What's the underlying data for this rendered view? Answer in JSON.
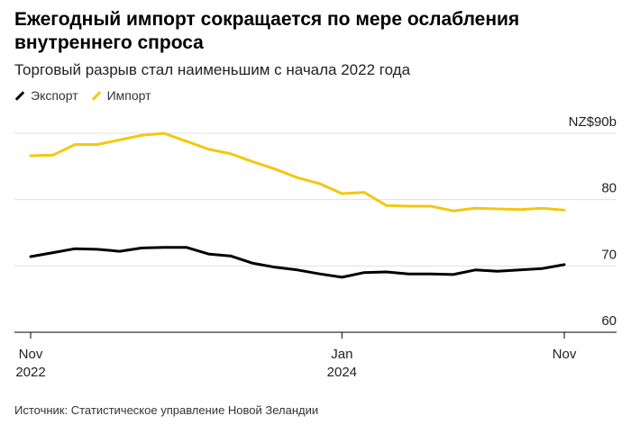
{
  "title": "Ежегодный импорт сокращается по мере ослабления внутреннего спроса",
  "subtitle": "Торговый разрыв стал наименьшим с начала 2022 года",
  "source": "Источник: Статистическое управление Новой Зеландии",
  "colors": {
    "export": "#000000",
    "import": "#f2c811",
    "grid": "#e0e0e0"
  },
  "chart_data": {
    "type": "line",
    "x": [
      "2022-11",
      "2022-12",
      "2023-01",
      "2023-02",
      "2023-03",
      "2023-04",
      "2023-05",
      "2023-06",
      "2023-07",
      "2023-08",
      "2023-09",
      "2023-10",
      "2023-11",
      "2023-12",
      "2024-01",
      "2024-02",
      "2024-03",
      "2024-04",
      "2024-05",
      "2024-06",
      "2024-07",
      "2024-08",
      "2024-09",
      "2024-10",
      "2024-11"
    ],
    "series": [
      {
        "name": "Экспорт",
        "color": "#000000",
        "values": [
          71.4,
          72.0,
          72.6,
          72.5,
          72.2,
          72.7,
          72.8,
          72.8,
          71.8,
          71.5,
          70.4,
          69.8,
          69.4,
          68.8,
          68.3,
          69.0,
          69.1,
          68.8,
          68.8,
          68.7,
          69.4,
          69.2,
          69.4,
          69.6,
          70.2
        ]
      },
      {
        "name": "Импорт",
        "color": "#f2c811",
        "values": [
          86.6,
          86.7,
          88.3,
          88.3,
          89.0,
          89.7,
          90.0,
          88.8,
          87.6,
          86.9,
          85.7,
          84.6,
          83.3,
          82.4,
          80.9,
          81.1,
          79.1,
          79.0,
          79.0,
          78.3,
          78.7,
          78.6,
          78.5,
          78.7,
          78.4
        ]
      }
    ],
    "ylabel": "NZ$90b",
    "yticks": [
      "NZ$90b",
      "80",
      "70",
      "60"
    ],
    "ytick_values": [
      90,
      80,
      70,
      60
    ],
    "ylim": [
      57,
      93
    ],
    "xticks": [
      {
        "top": "Nov",
        "bottom": "2022",
        "index": 0
      },
      {
        "top": "Jan",
        "bottom": "2024",
        "index": 14
      },
      {
        "top": "Nov",
        "bottom": "",
        "index": 24
      }
    ],
    "legend": "top-left",
    "grid": true
  }
}
